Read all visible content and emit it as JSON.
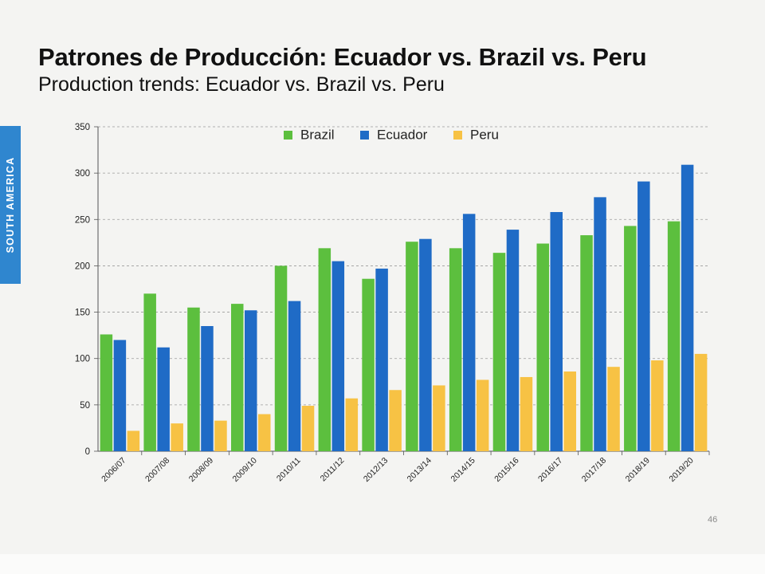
{
  "slide": {
    "title": "Patrones de Producción: Ecuador vs. Brazil vs. Peru",
    "subtitle": "Production trends: Ecuador vs. Brazil vs. Peru",
    "side_tab": "SOUTH AMERICA",
    "page_number": "46",
    "side_tab_color": "#2f86cf"
  },
  "chart_data": {
    "type": "bar",
    "title": "",
    "xlabel": "",
    "ylabel": "",
    "ylim": [
      0,
      350
    ],
    "yticks": [
      0,
      50,
      100,
      150,
      200,
      250,
      300,
      350
    ],
    "grid": true,
    "legend_position": "top-center",
    "categories": [
      "2006/07",
      "2007/08",
      "2008/09",
      "2009/10",
      "2010/11",
      "2011/12",
      "2012/13",
      "2013/14",
      "2014/15",
      "2015/16",
      "2016/17",
      "2017/18",
      "2018/19",
      "2019/20"
    ],
    "series": [
      {
        "name": "Brazil",
        "color": "#5cbf3e",
        "values": [
          126,
          170,
          155,
          159,
          200,
          219,
          186,
          226,
          219,
          214,
          224,
          233,
          243,
          248
        ]
      },
      {
        "name": "Ecuador",
        "color": "#1f6bc6",
        "values": [
          120,
          112,
          135,
          152,
          162,
          205,
          197,
          229,
          256,
          239,
          258,
          274,
          291,
          309
        ]
      },
      {
        "name": "Peru",
        "color": "#f7c244",
        "values": [
          22,
          30,
          33,
          40,
          49,
          57,
          66,
          71,
          77,
          80,
          86,
          91,
          98,
          105
        ]
      }
    ]
  }
}
